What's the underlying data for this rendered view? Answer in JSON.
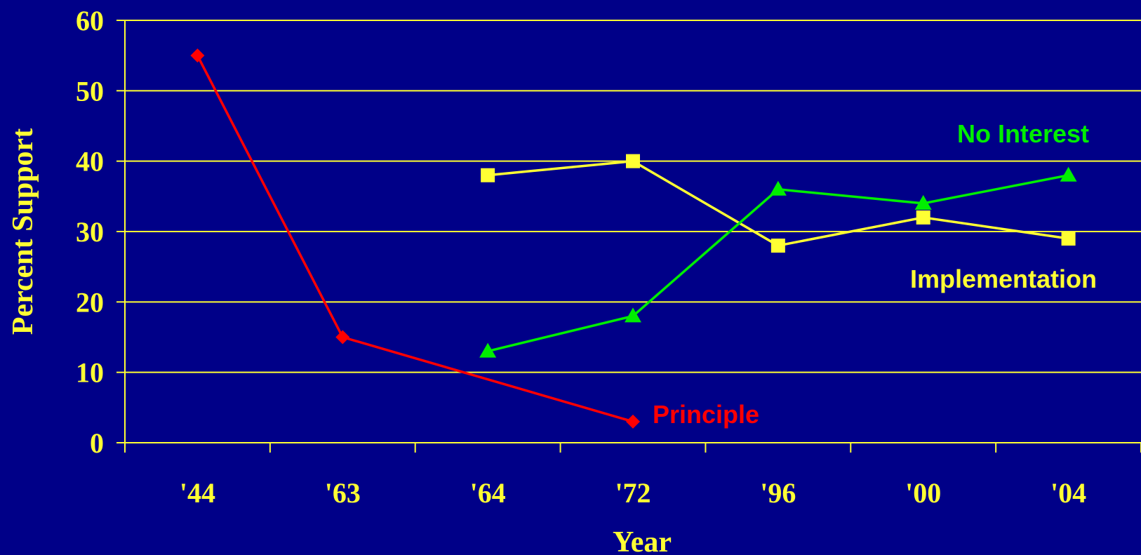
{
  "chart_data": {
    "type": "line",
    "title": "",
    "xlabel": "Year",
    "ylabel": "Percent Support",
    "categories": [
      "'44",
      "'63",
      "'64",
      "'72",
      "'96",
      "'00",
      "'04"
    ],
    "ylim": [
      0,
      60
    ],
    "yticks": [
      0,
      10,
      20,
      30,
      40,
      50,
      60
    ],
    "grid": true,
    "legend": "inline labels",
    "colors": {
      "background": "#000088",
      "axis": "#ffff33",
      "text": "#ffff33"
    },
    "series": [
      {
        "name": "Principle",
        "color": "#ff0000",
        "marker": "diamond",
        "points": [
          {
            "x": "'44",
            "y": 55
          },
          {
            "x": "'63",
            "y": 15
          },
          {
            "x": "'72",
            "y": 3
          }
        ]
      },
      {
        "name": "Implementation",
        "color": "#ffff33",
        "marker": "square",
        "points": [
          {
            "x": "'64",
            "y": 38
          },
          {
            "x": "'72",
            "y": 40
          },
          {
            "x": "'96",
            "y": 28
          },
          {
            "x": "'00",
            "y": 32
          },
          {
            "x": "'04",
            "y": 29
          }
        ]
      },
      {
        "name": "No Interest",
        "color": "#00ee00",
        "marker": "triangle",
        "points": [
          {
            "x": "'64",
            "y": 13
          },
          {
            "x": "'72",
            "y": 18
          },
          {
            "x": "'96",
            "y": 36
          },
          {
            "x": "'00",
            "y": 34
          },
          {
            "x": "'04",
            "y": 38
          }
        ]
      }
    ]
  }
}
